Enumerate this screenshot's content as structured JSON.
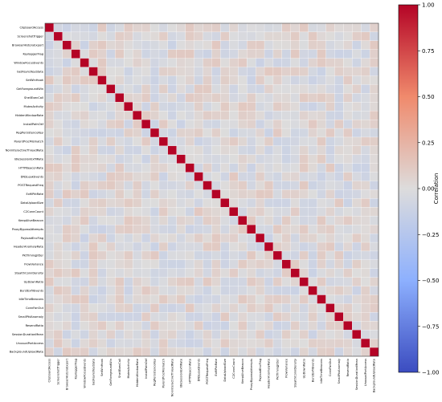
{
  "chart_data": {
    "type": "heatmap",
    "title": "",
    "xlabel": "",
    "ylabel": "",
    "labels": [
      "ClipboardAccess",
      "ScreenshotTrigger",
      "BrowserHistoryExport",
      "KeyloggerFlag",
      "WindowFocusEvents",
      "GetAsyncKeyState",
      "SetWinHook",
      "GetForegroundWin",
      "ShellExecCall",
      "MutexActivity",
      "HiddenWindowRate",
      "InstallPathOkf",
      "RegPersistenceKey",
      "ParentProcMismatch",
      "NoninteractiveThreadRate",
      "IdleSessionExfilRate",
      "HTTPBeaconRate",
      "DNSLeakEvents",
      "POSTRequestFreq",
      "ExfilPktRate",
      "DataUploadSize",
      "C2ConnCount",
      "KeepAliveBeacon",
      "ProxyBypassAttempts",
      "PayloadEncFlag",
      "HeaderAnomalyRate",
      "PktTimingJitter",
      "FlowVariance",
      "StealthConnDensity",
      "UpDownRatio",
      "BurstExfilEvents",
      "IdleTimeBeacons",
      "ConnFanOut",
      "SmallPktAnomaly",
      "ResendRatio",
      "SessionDurationMean",
      "UnusualPortAccess",
      "BackgroundUploadRate"
    ],
    "colorbar": {
      "label": "Correlation",
      "range": [
        -1.0,
        1.0
      ],
      "ticks": [
        "1.00",
        "0.75",
        "0.50",
        "0.25",
        "0.00",
        "−0.25",
        "−0.50",
        "−0.75",
        "−1.00"
      ],
      "colormap": "coolwarm"
    },
    "diagonal_value": 1.0,
    "off_diagonal_range": [
      -0.12,
      0.12
    ],
    "grid": true
  }
}
